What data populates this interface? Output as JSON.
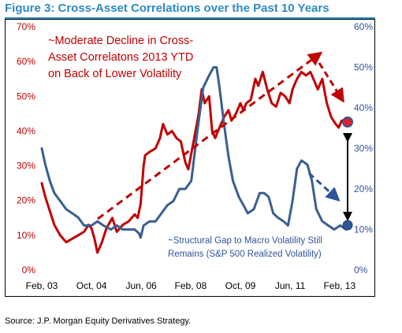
{
  "figure": {
    "title": "Figure 3: Cross-Asset Correlations over the Past 10 Years",
    "source": "Source: J.P. Morgan Equity Derivatives Strategy."
  },
  "colors": {
    "title": "#2f8ac4",
    "correlation_series": "#c00000",
    "volatility_series": "#3a5f8f",
    "left_axis_text": "#c00000",
    "right_axis_text": "#2f5597"
  },
  "chart_data": {
    "type": "line",
    "title": "",
    "xlabel": "",
    "ylabel_left": "",
    "ylabel_right": "",
    "x_range": [
      2003.08,
      2013.35
    ],
    "x_ticks": [
      {
        "label": "Feb, 03",
        "x": 2003.08
      },
      {
        "label": "Oct, 04",
        "x": 2004.75
      },
      {
        "label": "Jun, 06",
        "x": 2006.42
      },
      {
        "label": "Feb, 08",
        "x": 2008.08
      },
      {
        "label": "Oct, 09",
        "x": 2009.75
      },
      {
        "label": "Jun, 11",
        "x": 2011.42
      },
      {
        "label": "Feb, 13",
        "x": 2013.08
      }
    ],
    "y_left": {
      "min": 0,
      "max": 70,
      "ticks": [
        0,
        10,
        20,
        30,
        40,
        50,
        60,
        70
      ],
      "tick_labels": [
        "0%",
        "10%",
        "20%",
        "30%",
        "40%",
        "50%",
        "60%",
        "70%"
      ]
    },
    "y_right": {
      "min": 0,
      "max": 60,
      "ticks": [
        0,
        10,
        20,
        30,
        40,
        50,
        60
      ],
      "tick_labels": [
        "0%",
        "10%",
        "20%",
        "30%",
        "40%",
        "50%",
        "60%"
      ]
    },
    "grid": false,
    "legend": "none",
    "series": [
      {
        "axis": "left",
        "points": [
          [
            2003.08,
            25
          ],
          [
            2003.2,
            21
          ],
          [
            2003.35,
            17
          ],
          [
            2003.5,
            13
          ],
          [
            2003.7,
            10
          ],
          [
            2003.9,
            8
          ],
          [
            2004.1,
            9
          ],
          [
            2004.3,
            10
          ],
          [
            2004.5,
            11
          ],
          [
            2004.65,
            13
          ],
          [
            2004.75,
            12
          ],
          [
            2004.85,
            9
          ],
          [
            2004.95,
            5
          ],
          [
            2005.1,
            8
          ],
          [
            2005.25,
            12
          ],
          [
            2005.45,
            15
          ],
          [
            2005.6,
            11
          ],
          [
            2005.8,
            13
          ],
          [
            2006.0,
            14
          ],
          [
            2006.2,
            16
          ],
          [
            2006.3,
            15
          ],
          [
            2006.4,
            19
          ],
          [
            2006.5,
            30
          ],
          [
            2006.55,
            33
          ],
          [
            2006.7,
            34
          ],
          [
            2006.9,
            35
          ],
          [
            2007.05,
            38
          ],
          [
            2007.15,
            42
          ],
          [
            2007.3,
            39
          ],
          [
            2007.45,
            40
          ],
          [
            2007.6,
            38
          ],
          [
            2007.75,
            37
          ],
          [
            2007.9,
            31
          ],
          [
            2008.0,
            29
          ],
          [
            2008.2,
            38
          ],
          [
            2008.35,
            45
          ],
          [
            2008.45,
            52
          ],
          [
            2008.55,
            48
          ],
          [
            2008.7,
            50
          ],
          [
            2008.8,
            40
          ],
          [
            2008.9,
            38
          ],
          [
            2009.05,
            41
          ],
          [
            2009.2,
            44
          ],
          [
            2009.35,
            46
          ],
          [
            2009.45,
            43
          ],
          [
            2009.6,
            45
          ],
          [
            2009.75,
            48
          ],
          [
            2009.85,
            46
          ],
          [
            2009.95,
            48
          ],
          [
            2010.1,
            49
          ],
          [
            2010.25,
            55
          ],
          [
            2010.35,
            53
          ],
          [
            2010.5,
            57
          ],
          [
            2010.65,
            52
          ],
          [
            2010.8,
            48
          ],
          [
            2010.95,
            47
          ],
          [
            2011.1,
            51
          ],
          [
            2011.25,
            50
          ],
          [
            2011.4,
            48
          ],
          [
            2011.5,
            52
          ],
          [
            2011.65,
            55
          ],
          [
            2011.8,
            57
          ],
          [
            2011.95,
            56
          ],
          [
            2012.1,
            57
          ],
          [
            2012.2,
            55
          ],
          [
            2012.35,
            52
          ],
          [
            2012.5,
            55
          ],
          [
            2012.65,
            48
          ],
          [
            2012.8,
            44
          ],
          [
            2012.95,
            42
          ],
          [
            2013.05,
            41
          ],
          [
            2013.15,
            43
          ],
          [
            2013.3,
            43
          ]
        ]
      },
      {
        "axis": "right",
        "points": [
          [
            2003.08,
            30
          ],
          [
            2003.2,
            26
          ],
          [
            2003.35,
            22
          ],
          [
            2003.5,
            19
          ],
          [
            2003.7,
            17
          ],
          [
            2003.9,
            15
          ],
          [
            2004.1,
            14
          ],
          [
            2004.3,
            13
          ],
          [
            2004.5,
            11
          ],
          [
            2004.75,
            11
          ],
          [
            2004.95,
            12
          ],
          [
            2005.15,
            11
          ],
          [
            2005.4,
            10
          ],
          [
            2005.6,
            11
          ],
          [
            2005.8,
            10
          ],
          [
            2006.0,
            10
          ],
          [
            2006.2,
            10
          ],
          [
            2006.35,
            9
          ],
          [
            2006.4,
            8
          ],
          [
            2006.5,
            11
          ],
          [
            2006.7,
            12
          ],
          [
            2006.9,
            12
          ],
          [
            2007.1,
            14
          ],
          [
            2007.3,
            16
          ],
          [
            2007.5,
            17
          ],
          [
            2007.7,
            20
          ],
          [
            2007.9,
            20
          ],
          [
            2008.0,
            21
          ],
          [
            2008.1,
            22
          ],
          [
            2008.3,
            34
          ],
          [
            2008.5,
            45
          ],
          [
            2008.7,
            48
          ],
          [
            2008.85,
            50
          ],
          [
            2008.95,
            50
          ],
          [
            2009.05,
            45
          ],
          [
            2009.2,
            36
          ],
          [
            2009.35,
            28
          ],
          [
            2009.5,
            22
          ],
          [
            2009.7,
            18
          ],
          [
            2009.85,
            16
          ],
          [
            2010.0,
            14
          ],
          [
            2010.2,
            15
          ],
          [
            2010.4,
            19
          ],
          [
            2010.55,
            19
          ],
          [
            2010.7,
            18
          ],
          [
            2010.85,
            14
          ],
          [
            2011.0,
            13
          ],
          [
            2011.2,
            12
          ],
          [
            2011.35,
            11
          ],
          [
            2011.5,
            17
          ],
          [
            2011.65,
            25
          ],
          [
            2011.8,
            27
          ],
          [
            2012.0,
            26
          ],
          [
            2012.15,
            22
          ],
          [
            2012.3,
            15
          ],
          [
            2012.5,
            12
          ],
          [
            2012.7,
            11
          ],
          [
            2012.9,
            10
          ],
          [
            2013.1,
            11
          ],
          [
            2013.3,
            10
          ]
        ]
      }
    ],
    "annotations": [
      {
        "lines": [
          "~Moderate Decline in Cross-",
          "Asset Correlatons 2013 YTD",
          "on Back of Lower Volatility"
        ],
        "color": "#c00000"
      },
      {
        "lines": [
          "~Structural Gap to Macro Volatility Still",
          "Remains (S&P 500 Realized Volatility)"
        ],
        "color": "#2f5597"
      }
    ]
  }
}
